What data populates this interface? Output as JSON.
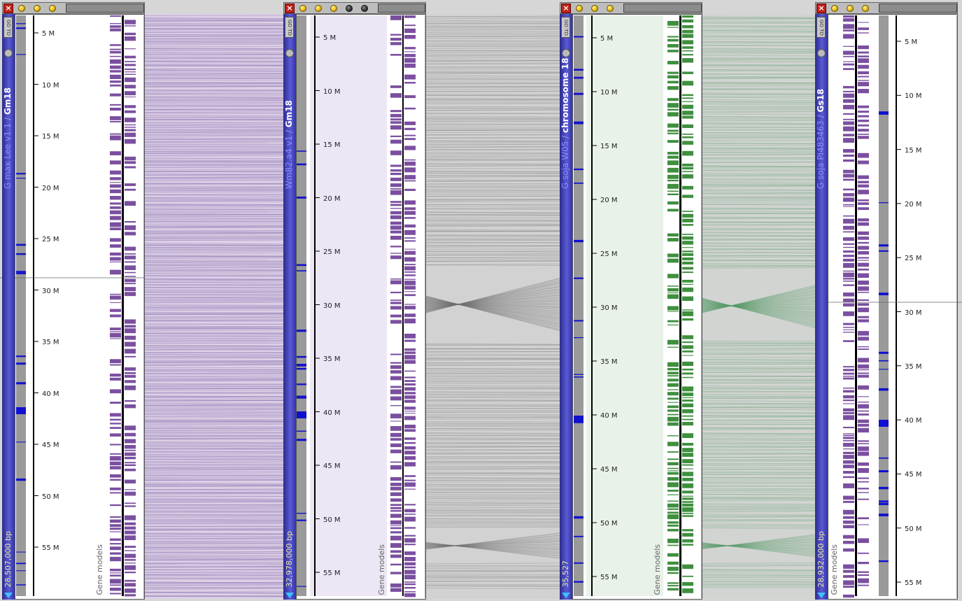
{
  "panels": [
    {
      "organism": "G max Lee v1.1",
      "separator": " / ",
      "chromosome": "Gm18",
      "bp": "28,507,000 bp",
      "gene_label": "Gene models",
      "goto": "GO TO",
      "track_color": "#7b4fa0",
      "ticks": [
        "5 M",
        "10 M",
        "15 M",
        "20 M",
        "25 M",
        "30 M",
        "35 M",
        "40 M",
        "45 M",
        "50 M",
        "55 M"
      ],
      "extra_dots": 0
    },
    {
      "organism": "Wm82.a4 v1",
      "separator": " / ",
      "chromosome": "Gm18",
      "bp": "32,978,000 bp",
      "gene_label": "Gene models",
      "goto": "GO TO",
      "track_color": "#7b4fa0",
      "ticks": [
        "5 M",
        "10 M",
        "15 M",
        "20 M",
        "25 M",
        "30 M",
        "35 M",
        "40 M",
        "45 M",
        "50 M",
        "55 M"
      ],
      "extra_dots": 2
    },
    {
      "organism": "G soja W05",
      "separator": " / ",
      "chromosome": "chromosome 18",
      "bp": "35,527",
      "gene_label": "Gene models",
      "goto": "GO TO",
      "track_color": "#3f8f3f",
      "ticks": [
        "5 M",
        "10 M",
        "15 M",
        "20 M",
        "25 M",
        "30 M",
        "35 M",
        "40 M",
        "45 M",
        "50 M",
        "55 M"
      ],
      "extra_dots": 0
    },
    {
      "organism": "G soja PI483463",
      "separator": " / ",
      "chromosome": "Gs18",
      "bp": "28,932,000 bp",
      "gene_label": "Gene models",
      "goto": "GO TO",
      "track_color": "#7b4fa0",
      "ticks": [
        "5 M",
        "10 M",
        "15 M",
        "20 M",
        "25 M",
        "30 M",
        "35 M",
        "40 M",
        "45 M",
        "50 M",
        "55 M"
      ],
      "extra_dots": 0
    }
  ],
  "colors": {
    "purple_link": "#8a6fb0",
    "green_link": "#5a9a6a",
    "grey_link": "#6f6f6f",
    "sidebar": "#3a3ab0",
    "density": "#9a9a9a",
    "highlight": "#1010d0"
  }
}
